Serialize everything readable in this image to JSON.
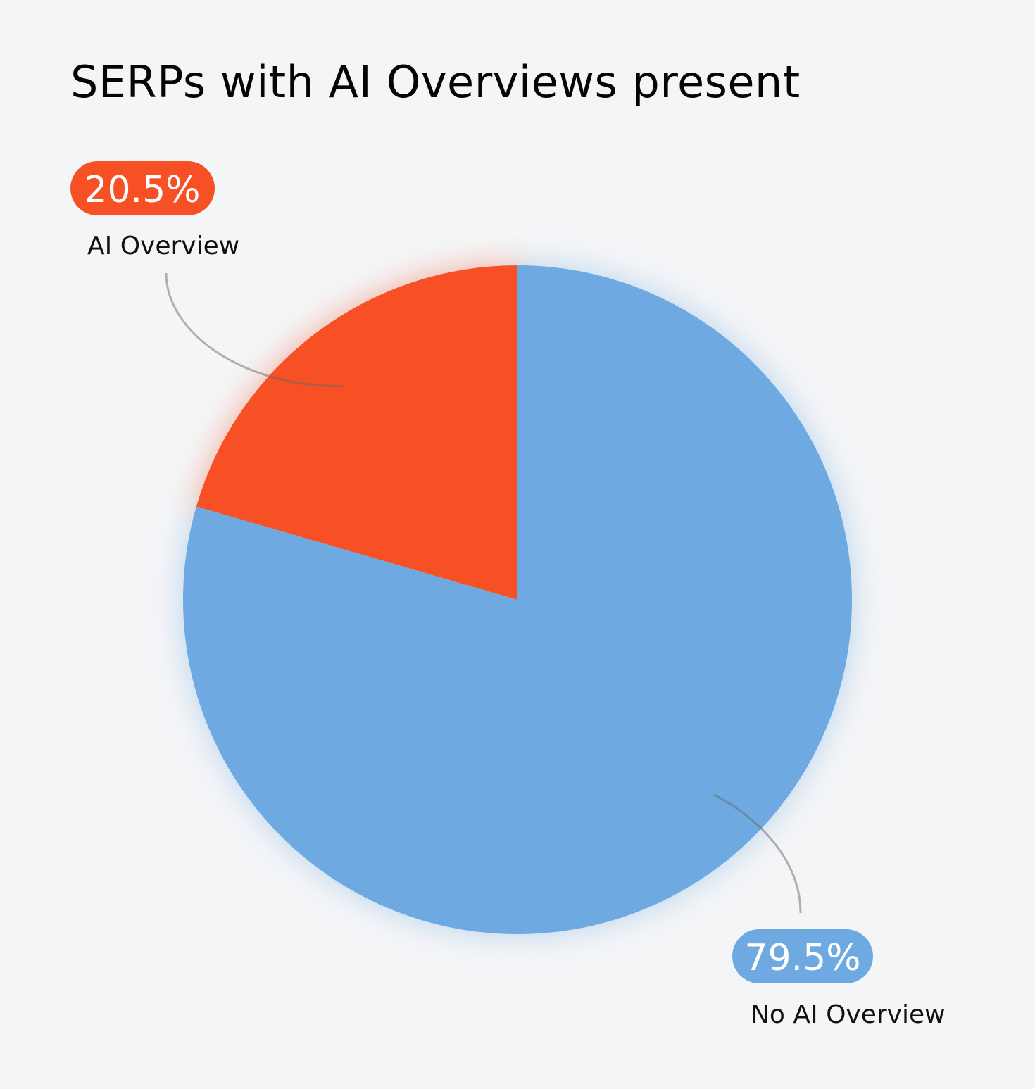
{
  "chart_data": {
    "type": "pie",
    "title": "SERPs with AI Overviews present",
    "slices": [
      {
        "label": "AI Overview",
        "value": 20.5,
        "display": "20.5%",
        "color": "#f65024"
      },
      {
        "label": "No AI Overview",
        "value": 79.5,
        "display": "79.5%",
        "color": "#6eaae1"
      }
    ],
    "start_angle_deg": 0,
    "direction": "counterclockwise",
    "legend": "none"
  }
}
